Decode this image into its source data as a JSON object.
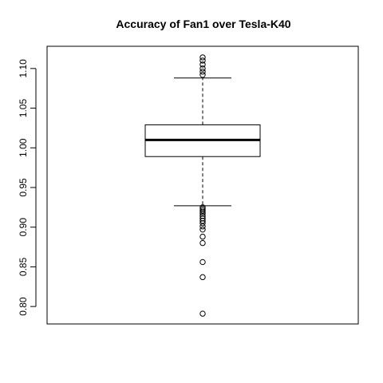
{
  "chart_data": {
    "type": "boxplot",
    "title": "Accuracy of Fan1 over Tesla-K40",
    "xlabel": "",
    "ylabel": "",
    "ylim": [
      0.778,
      1.128
    ],
    "yticks": [
      {
        "value": 0.8,
        "label": "0.80"
      },
      {
        "value": 0.85,
        "label": "0.85"
      },
      {
        "value": 0.9,
        "label": "0.90"
      },
      {
        "value": 0.95,
        "label": "0.95"
      },
      {
        "value": 1.0,
        "label": "1.00"
      },
      {
        "value": 1.05,
        "label": "1.05"
      },
      {
        "value": 1.1,
        "label": "1.10"
      }
    ],
    "grid": false,
    "box": {
      "whisker_low": 0.927,
      "q1": 0.989,
      "median": 1.01,
      "q3": 1.029,
      "whisker_high": 1.088
    },
    "outliers": [
      1.114,
      1.11,
      1.105,
      1.1,
      1.096,
      1.092,
      0.925,
      0.923,
      0.921,
      0.919,
      0.917,
      0.914,
      0.911,
      0.908,
      0.905,
      0.901,
      0.897,
      0.888,
      0.88,
      0.856,
      0.837,
      0.791
    ]
  }
}
